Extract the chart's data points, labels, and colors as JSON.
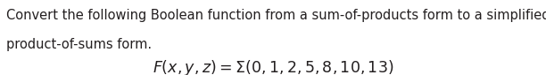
{
  "line1": "Convert the following Boolean function from a sum-of-products form to a simplified",
  "line2": "product-of-sums form.",
  "formula": "$F(x, y, z) = \\Sigma(0, 1, 2, 5, 8, 10, 13)$",
  "text_color": "#231f20",
  "bg_color": "#ffffff",
  "font_size_body": 10.5,
  "font_size_formula": 12.5,
  "fig_width": 6.12,
  "fig_height": 0.85,
  "dpi": 100
}
